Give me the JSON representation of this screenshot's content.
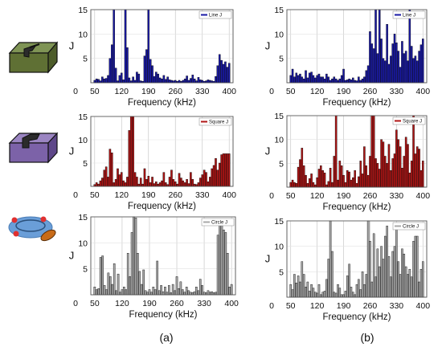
{
  "panel_labels": [
    "(a)",
    "(b)"
  ],
  "chart_data": [
    {
      "type": "bar",
      "column": "(a)",
      "legend": "Line J",
      "color": "#1a1aa6",
      "ylabel": "J",
      "xlabel": "Frequency (kHz)",
      "xlim": [
        40,
        410
      ],
      "ylim": [
        0,
        15
      ],
      "xticks": [
        50,
        120,
        190,
        260,
        330,
        400
      ],
      "yticks": [
        5,
        10,
        15
      ],
      "x": [
        50,
        55,
        60,
        65,
        70,
        75,
        80,
        85,
        90,
        95,
        100,
        105,
        110,
        115,
        120,
        125,
        130,
        135,
        140,
        145,
        150,
        155,
        160,
        165,
        170,
        175,
        180,
        185,
        190,
        195,
        200,
        205,
        210,
        215,
        220,
        225,
        230,
        235,
        240,
        245,
        250,
        255,
        260,
        265,
        270,
        275,
        280,
        285,
        290,
        295,
        300,
        305,
        310,
        315,
        320,
        325,
        330,
        335,
        340,
        345,
        350,
        355,
        360,
        365,
        370,
        375,
        380,
        385,
        390,
        395,
        400
      ],
      "values": [
        0.5,
        0.8,
        0.7,
        0.4,
        1.2,
        0.8,
        0.9,
        1.5,
        5.0,
        7.8,
        15,
        3.0,
        0.4,
        1.5,
        2.0,
        0.6,
        15,
        7.2,
        1.0,
        0.4,
        1.2,
        0.5,
        2.2,
        1.8,
        0.4,
        0.3,
        5.5,
        6.8,
        15,
        4.8,
        3.5,
        1.3,
        2.2,
        1.8,
        1.0,
        0.8,
        1.5,
        0.7,
        1.2,
        0.6,
        0.5,
        0.4,
        0.5,
        0.3,
        0.5,
        0.3,
        0.5,
        0.8,
        1.4,
        0.5,
        0.9,
        1.6,
        0.8,
        0.4,
        1.1,
        0.6,
        0.5,
        0.3,
        0.4,
        0.6,
        0.5,
        0.4,
        0.3,
        1.3,
        3.5,
        5.8,
        4.6,
        3.8,
        4.3,
        3.2,
        4.0
      ]
    },
    {
      "type": "bar",
      "column": "(b)",
      "legend": "Line J",
      "color": "#1a1aa6",
      "ylabel": "J",
      "xlabel": "Frequency (kHz)",
      "xlim": [
        40,
        410
      ],
      "ylim": [
        0,
        15
      ],
      "xticks": [
        50,
        120,
        190,
        260,
        330,
        400
      ],
      "yticks": [
        5,
        10,
        15
      ],
      "x": [
        50,
        55,
        60,
        65,
        70,
        75,
        80,
        85,
        90,
        95,
        100,
        105,
        110,
        115,
        120,
        125,
        130,
        135,
        140,
        145,
        150,
        155,
        160,
        165,
        170,
        175,
        180,
        185,
        190,
        195,
        200,
        205,
        210,
        215,
        220,
        225,
        230,
        235,
        240,
        245,
        250,
        255,
        260,
        265,
        270,
        275,
        280,
        285,
        290,
        295,
        300,
        305,
        310,
        315,
        320,
        325,
        330,
        335,
        340,
        345,
        350,
        355,
        360,
        365,
        370,
        375,
        380,
        385,
        390,
        395,
        400
      ],
      "values": [
        1.5,
        2.8,
        1.2,
        2.0,
        1.5,
        1.8,
        1.2,
        0.8,
        2.5,
        1.0,
        2.0,
        2.2,
        1.5,
        1.0,
        1.5,
        1.8,
        1.2,
        1.2,
        0.8,
        1.8,
        1.2,
        0.5,
        0.8,
        1.2,
        0.8,
        0.5,
        0.8,
        1.5,
        2.8,
        0.5,
        0.6,
        0.8,
        0.6,
        1.0,
        0.5,
        0.4,
        1.2,
        0.5,
        0.8,
        1.2,
        2.5,
        3.5,
        10.5,
        8.0,
        7.0,
        15,
        6.0,
        15,
        9.0,
        5.0,
        4.5,
        12,
        3.8,
        5.5,
        8.0,
        10.0,
        8.2,
        6.5,
        3.2,
        8.5,
        6.0,
        6.5,
        4.5,
        15,
        7.5,
        5.0,
        5.5,
        4.5,
        6.5,
        7.8,
        9.0
      ]
    },
    {
      "type": "bar",
      "column": "(a)",
      "legend": "Square J",
      "color": "#b01515",
      "ylabel": "J",
      "xlabel": "Frequency (kHz)",
      "xlim": [
        40,
        410
      ],
      "ylim": [
        0,
        15
      ],
      "xticks": [
        50,
        120,
        190,
        260,
        330,
        400
      ],
      "yticks": [
        5,
        10,
        15
      ],
      "x": [
        50,
        55,
        60,
        65,
        70,
        75,
        80,
        85,
        90,
        95,
        100,
        105,
        110,
        115,
        120,
        125,
        130,
        135,
        140,
        145,
        150,
        155,
        160,
        165,
        170,
        175,
        180,
        185,
        190,
        195,
        200,
        205,
        210,
        215,
        220,
        225,
        230,
        235,
        240,
        245,
        250,
        255,
        260,
        265,
        270,
        275,
        280,
        285,
        290,
        295,
        300,
        305,
        310,
        315,
        320,
        325,
        330,
        335,
        340,
        345,
        350,
        355,
        360,
        365,
        370,
        375,
        380,
        385,
        390,
        395,
        400
      ],
      "values": [
        0.4,
        0.8,
        0.5,
        1.2,
        1.8,
        3.5,
        4.2,
        2.0,
        8.0,
        7.2,
        0.8,
        1.5,
        3.8,
        2.5,
        3.0,
        1.2,
        0.8,
        2.0,
        12.0,
        15,
        15,
        3.0,
        2.0,
        0.5,
        1.8,
        0.5,
        3.8,
        1.5,
        2.2,
        0.8,
        2.0,
        0.6,
        1.0,
        0.5,
        0.8,
        1.2,
        3.0,
        0.8,
        0.4,
        2.0,
        3.5,
        1.5,
        1.0,
        0.5,
        2.8,
        1.8,
        1.2,
        0.8,
        1.5,
        0.6,
        3.0,
        1.5,
        0.5,
        0.4,
        0.8,
        1.8,
        2.5,
        3.5,
        3.0,
        1.0,
        2.0,
        3.8,
        4.5,
        6.0,
        3.5,
        5.0,
        6.8,
        7.0,
        7.0,
        7.0,
        7.0
      ]
    },
    {
      "type": "bar",
      "column": "(b)",
      "legend": "Square J",
      "color": "#b01515",
      "ylabel": "J",
      "xlabel": "Frequency (kHz)",
      "xlim": [
        40,
        410
      ],
      "ylim": [
        0,
        15
      ],
      "xticks": [
        50,
        120,
        190,
        260,
        330,
        400
      ],
      "yticks": [
        5,
        10,
        15
      ],
      "x": [
        50,
        55,
        60,
        65,
        70,
        75,
        80,
        85,
        90,
        95,
        100,
        105,
        110,
        115,
        120,
        125,
        130,
        135,
        140,
        145,
        150,
        155,
        160,
        165,
        170,
        175,
        180,
        185,
        190,
        195,
        200,
        205,
        210,
        215,
        220,
        225,
        230,
        235,
        240,
        245,
        250,
        255,
        260,
        265,
        270,
        275,
        280,
        285,
        290,
        295,
        300,
        305,
        310,
        315,
        320,
        325,
        330,
        335,
        340,
        345,
        350,
        355,
        360,
        365,
        370,
        375,
        380,
        385,
        390,
        395,
        400
      ],
      "values": [
        1.0,
        1.5,
        1.0,
        0.8,
        4.2,
        5.8,
        8.2,
        4.5,
        2.5,
        0.8,
        1.8,
        2.8,
        1.0,
        0.5,
        2.0,
        3.8,
        4.5,
        3.5,
        3.0,
        0.5,
        1.2,
        4.0,
        1.0,
        6.5,
        15,
        1.5,
        5.5,
        4.5,
        2.5,
        1.0,
        3.5,
        3.2,
        1.5,
        2.0,
        3.5,
        0.8,
        2.2,
        5.5,
        2.8,
        8.5,
        4.5,
        2.5,
        6.5,
        15,
        15,
        6.0,
        5.0,
        3.8,
        10.0,
        9.5,
        6.5,
        5.0,
        9.0,
        3.5,
        6.0,
        7.0,
        12.0,
        10.0,
        8.5,
        4.0,
        6.5,
        10.5,
        9.0,
        3.0,
        5.5,
        15,
        7.0,
        8.5,
        8.0,
        3.5,
        5.5
      ]
    },
    {
      "type": "bar",
      "column": "(a)",
      "legend": "Circle J",
      "color": "#a8a8a8",
      "ylabel": "J",
      "xlabel": "Frequency (kHz)",
      "xlim": [
        40,
        410
      ],
      "ylim": [
        0,
        15
      ],
      "xticks": [
        50,
        120,
        190,
        260,
        330,
        400
      ],
      "yticks": [
        5,
        10,
        15
      ],
      "x": [
        50,
        55,
        60,
        65,
        70,
        75,
        80,
        85,
        90,
        95,
        100,
        105,
        110,
        115,
        120,
        125,
        130,
        135,
        140,
        145,
        150,
        155,
        160,
        165,
        170,
        175,
        180,
        185,
        190,
        195,
        200,
        205,
        210,
        215,
        220,
        225,
        230,
        235,
        240,
        245,
        250,
        255,
        260,
        265,
        270,
        275,
        280,
        285,
        290,
        295,
        300,
        305,
        310,
        315,
        320,
        325,
        330,
        335,
        340,
        345,
        350,
        355,
        360,
        365,
        370,
        375,
        380,
        385,
        390,
        395,
        400
      ],
      "values": [
        1.5,
        1.0,
        1.2,
        7.2,
        7.5,
        1.8,
        1.0,
        4.2,
        3.5,
        2.0,
        6.0,
        0.8,
        4.0,
        0.5,
        1.0,
        1.5,
        1.0,
        8.0,
        3.5,
        12.0,
        15,
        14.8,
        8.0,
        4.5,
        2.0,
        4.8,
        0.8,
        0.5,
        1.0,
        0.5,
        1.5,
        1.0,
        6.5,
        0.8,
        1.8,
        0.6,
        1.5,
        0.5,
        1.8,
        0.4,
        2.0,
        0.8,
        3.5,
        1.2,
        2.5,
        1.0,
        0.5,
        1.5,
        0.8,
        0.5,
        0.4,
        0.6,
        1.5,
        0.8,
        3.0,
        1.8,
        0.5,
        0.4,
        0.8,
        0.5,
        0.6,
        0.4,
        0.5,
        11.5,
        13.5,
        13.8,
        12.5,
        12.0,
        8.0,
        1.5,
        2.0
      ]
    },
    {
      "type": "bar",
      "column": "(b)",
      "legend": "Circle J",
      "color": "#a8a8a8",
      "ylabel": "J",
      "xlabel": "Frequency (kHz)",
      "xlim": [
        40,
        410
      ],
      "ylim": [
        0,
        15
      ],
      "xticks": [
        50,
        120,
        190,
        260,
        330,
        400
      ],
      "yticks": [
        5,
        10,
        15
      ],
      "x": [
        50,
        55,
        60,
        65,
        70,
        75,
        80,
        85,
        90,
        95,
        100,
        105,
        110,
        115,
        120,
        125,
        130,
        135,
        140,
        145,
        150,
        155,
        160,
        165,
        170,
        175,
        180,
        185,
        190,
        195,
        200,
        205,
        210,
        215,
        220,
        225,
        230,
        235,
        240,
        245,
        250,
        255,
        260,
        265,
        270,
        275,
        280,
        285,
        290,
        295,
        300,
        305,
        310,
        315,
        320,
        325,
        330,
        335,
        340,
        345,
        350,
        355,
        360,
        365,
        370,
        375,
        380,
        385,
        390,
        395,
        400
      ],
      "values": [
        2.5,
        1.5,
        4.5,
        2.8,
        4.2,
        3.0,
        7.0,
        4.5,
        2.0,
        3.0,
        1.2,
        2.5,
        1.8,
        1.0,
        0.8,
        2.5,
        0.5,
        1.0,
        1.2,
        3.5,
        7.5,
        15,
        9.0,
        1.0,
        0.8,
        2.5,
        1.8,
        0.5,
        0.5,
        1.2,
        4.2,
        6.5,
        2.0,
        1.0,
        0.5,
        2.5,
        3.5,
        1.5,
        5.0,
        2.5,
        4.5,
        15,
        11.0,
        3.0,
        12.5,
        4.0,
        9.5,
        6.0,
        10.0,
        7.5,
        12.0,
        14.0,
        8.0,
        4.0,
        9.0,
        10.0,
        14.5,
        7.0,
        4.5,
        9.5,
        8.5,
        6.0,
        4.5,
        5.5,
        4.0,
        11.0,
        12.0,
        12.0,
        3.0,
        5.5,
        7.0
      ]
    }
  ]
}
